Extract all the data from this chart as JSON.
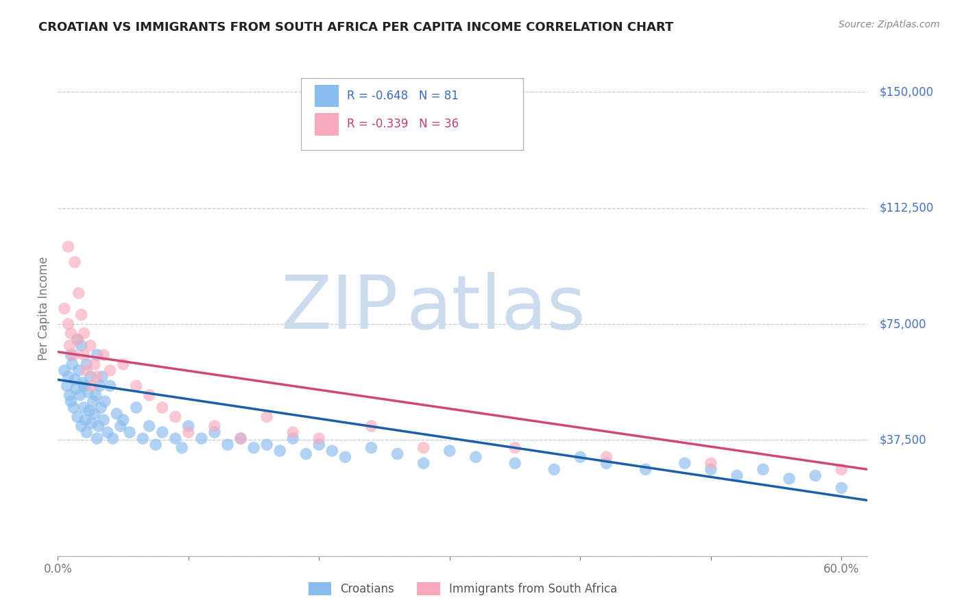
{
  "title": "CROATIAN VS IMMIGRANTS FROM SOUTH AFRICA PER CAPITA INCOME CORRELATION CHART",
  "source": "Source: ZipAtlas.com",
  "ylabel": "Per Capita Income",
  "xlim": [
    0.0,
    0.62
  ],
  "ylim": [
    0,
    160000
  ],
  "y_ticks": [
    0,
    37500,
    75000,
    112500,
    150000
  ],
  "y_tick_labels": [
    "",
    "$37,500",
    "$75,000",
    "$112,500",
    "$150,000"
  ],
  "x_ticks": [
    0.0,
    0.1,
    0.2,
    0.3,
    0.4,
    0.5,
    0.6
  ],
  "x_tick_labels": [
    "0.0%",
    "",
    "",
    "",
    "",
    "",
    "60.0%"
  ],
  "blue_R": -0.648,
  "blue_N": 81,
  "pink_R": -0.339,
  "pink_N": 36,
  "blue_color": "#88bbee",
  "pink_color": "#f8aabc",
  "blue_line_color": "#1a5fa8",
  "pink_line_color": "#d04878",
  "watermark_zip": "ZIP",
  "watermark_atlas": "atlas",
  "watermark_color": "#ccdcee",
  "legend_label_blue": "Croatians",
  "legend_label_pink": "Immigrants from South Africa",
  "blue_trend_x0": 0.0,
  "blue_trend_y0": 57000,
  "blue_trend_x1": 0.62,
  "blue_trend_y1": 18000,
  "pink_trend_x0": 0.0,
  "pink_trend_y0": 66000,
  "pink_trend_x1": 0.62,
  "pink_trend_y1": 28000,
  "blue_scatter_x": [
    0.005,
    0.007,
    0.008,
    0.009,
    0.01,
    0.01,
    0.011,
    0.012,
    0.013,
    0.014,
    0.015,
    0.015,
    0.016,
    0.017,
    0.018,
    0.018,
    0.019,
    0.02,
    0.02,
    0.021,
    0.022,
    0.022,
    0.023,
    0.024,
    0.025,
    0.026,
    0.027,
    0.028,
    0.029,
    0.03,
    0.03,
    0.031,
    0.032,
    0.033,
    0.034,
    0.035,
    0.036,
    0.038,
    0.04,
    0.042,
    0.045,
    0.048,
    0.05,
    0.055,
    0.06,
    0.065,
    0.07,
    0.075,
    0.08,
    0.09,
    0.095,
    0.1,
    0.11,
    0.12,
    0.13,
    0.14,
    0.15,
    0.16,
    0.17,
    0.18,
    0.19,
    0.2,
    0.21,
    0.22,
    0.24,
    0.26,
    0.28,
    0.3,
    0.32,
    0.35,
    0.38,
    0.4,
    0.42,
    0.45,
    0.48,
    0.5,
    0.52,
    0.54,
    0.56,
    0.58,
    0.6
  ],
  "blue_scatter_y": [
    60000,
    55000,
    58000,
    52000,
    65000,
    50000,
    62000,
    48000,
    57000,
    54000,
    70000,
    45000,
    60000,
    52000,
    68000,
    42000,
    56000,
    48000,
    55000,
    44000,
    62000,
    40000,
    53000,
    47000,
    58000,
    43000,
    50000,
    46000,
    52000,
    38000,
    65000,
    42000,
    55000,
    48000,
    58000,
    44000,
    50000,
    40000,
    55000,
    38000,
    46000,
    42000,
    44000,
    40000,
    48000,
    38000,
    42000,
    36000,
    40000,
    38000,
    35000,
    42000,
    38000,
    40000,
    36000,
    38000,
    35000,
    36000,
    34000,
    38000,
    33000,
    36000,
    34000,
    32000,
    35000,
    33000,
    30000,
    34000,
    32000,
    30000,
    28000,
    32000,
    30000,
    28000,
    30000,
    28000,
    26000,
    28000,
    25000,
    26000,
    22000
  ],
  "pink_scatter_x": [
    0.005,
    0.008,
    0.008,
    0.009,
    0.01,
    0.012,
    0.013,
    0.015,
    0.016,
    0.018,
    0.02,
    0.02,
    0.022,
    0.025,
    0.026,
    0.028,
    0.03,
    0.035,
    0.04,
    0.05,
    0.06,
    0.07,
    0.08,
    0.09,
    0.1,
    0.12,
    0.14,
    0.16,
    0.18,
    0.2,
    0.24,
    0.28,
    0.35,
    0.42,
    0.5,
    0.6
  ],
  "pink_scatter_y": [
    80000,
    75000,
    100000,
    68000,
    72000,
    65000,
    95000,
    70000,
    85000,
    78000,
    65000,
    72000,
    60000,
    68000,
    55000,
    62000,
    58000,
    65000,
    60000,
    62000,
    55000,
    52000,
    48000,
    45000,
    40000,
    42000,
    38000,
    45000,
    40000,
    38000,
    42000,
    35000,
    35000,
    32000,
    30000,
    28000
  ]
}
